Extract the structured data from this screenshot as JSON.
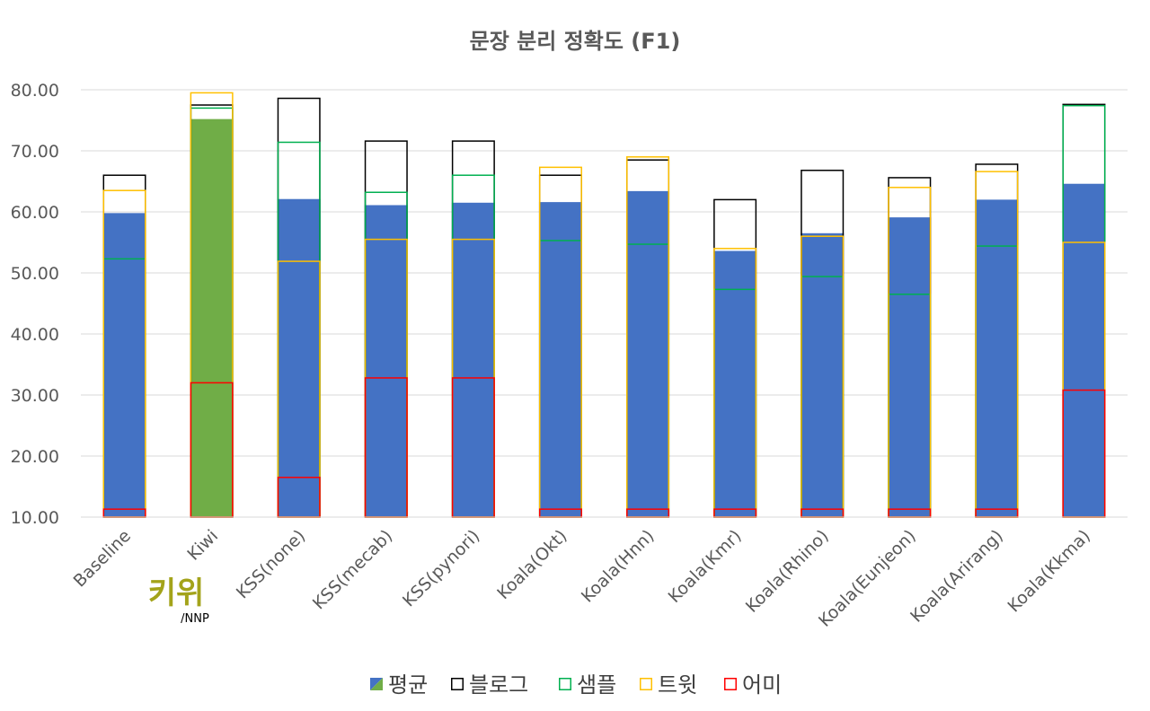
{
  "chart_data": {
    "type": "bar",
    "title": "문장 분리 정확도 (F1)",
    "categories": [
      "Baseline",
      "Kiwi",
      "KSS(none)",
      "KSS(mecab)",
      "KSS(pynori)",
      "Koala(Okt)",
      "Koala(Hnn)",
      "Koala(Kmr)",
      "Koala(Rhino)",
      "Koala(Eunjeon)",
      "Koala(Arirang)",
      "Koala(Kkma)"
    ],
    "y_tick_labels": [
      "10.00",
      "20.00",
      "30.00",
      "40.00",
      "50.00",
      "60.00",
      "70.00",
      "80.00"
    ],
    "ylim": [
      10,
      80
    ],
    "grid": true,
    "legend_position": "bottom",
    "highlight_category": "Kiwi",
    "highlight_color": "#70ad47",
    "series": [
      {
        "name": "평균",
        "style": "filled",
        "color": "#4472c4",
        "values": [
          59.8,
          75.2,
          62.1,
          61.1,
          61.5,
          61.6,
          63.4,
          53.6,
          56.5,
          59.1,
          62.0,
          64.6
        ]
      },
      {
        "name": "블로그",
        "style": "outline",
        "color": "#000000",
        "values": [
          66.0,
          77.5,
          78.6,
          71.6,
          71.6,
          66.0,
          68.5,
          62.0,
          66.8,
          65.6,
          67.8,
          77.6
        ]
      },
      {
        "name": "샘플",
        "style": "outline",
        "color": "#00b050",
        "values": [
          52.3,
          77.0,
          71.4,
          63.2,
          66.0,
          55.3,
          54.7,
          47.3,
          49.4,
          46.5,
          54.4,
          77.4
        ]
      },
      {
        "name": "트윗",
        "style": "outline",
        "color": "#ffc000",
        "values": [
          63.5,
          79.5,
          51.9,
          55.5,
          55.5,
          67.3,
          69.0,
          54.0,
          56.0,
          64.0,
          66.6,
          55.0
        ]
      },
      {
        "name": "어미",
        "style": "outline",
        "color": "#ff0000",
        "values": [
          11.3,
          32.0,
          16.5,
          32.8,
          32.8,
          11.3,
          11.3,
          11.3,
          11.3,
          11.3,
          11.3,
          30.8
        ]
      }
    ]
  },
  "logo": {
    "text": "키위",
    "subtext": "/NNP",
    "color": "#a3a31a"
  }
}
